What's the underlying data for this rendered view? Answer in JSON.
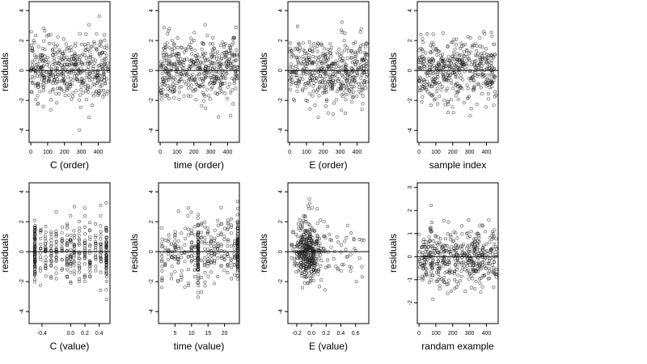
{
  "figure": {
    "background": "#ffffff",
    "point_color": "#222222"
  },
  "chart_data": [
    {
      "type": "scatter",
      "xlabel": "C (order)",
      "ylabel": "residuals",
      "xlim": [
        -10,
        470
      ],
      "ylim": [
        -4.8,
        4.6
      ],
      "xticks": [
        0,
        100,
        200,
        300,
        400
      ],
      "xtick_labels": [
        "0",
        "100",
        "200",
        "300",
        "400"
      ],
      "yticks": [
        -4,
        -2,
        0,
        2,
        4
      ],
      "ytick_labels": [
        "-4",
        "-2",
        "0",
        "2",
        "4"
      ],
      "hline": 0,
      "points": {
        "description": "about 460 residuals, noise centered on 0",
        "x_kind": "index",
        "n": 460,
        "x_range": [
          0,
          460
        ],
        "spread": 1.7,
        "y_clip": [
          -4.4,
          4.3
        ],
        "seed": 11
      }
    },
    {
      "type": "scatter",
      "xlabel": "time (order)",
      "ylabel": "residuals",
      "xlim": [
        -10,
        470
      ],
      "ylim": [
        -4.8,
        4.6
      ],
      "xticks": [
        0,
        100,
        200,
        300,
        400
      ],
      "xtick_labels": [
        "0",
        "100",
        "200",
        "300",
        "400"
      ],
      "yticks": [
        -4,
        -2,
        0,
        2,
        4
      ],
      "ytick_labels": [
        "-4",
        "-2",
        "0",
        "2",
        "4"
      ],
      "hline": 0,
      "points": {
        "description": "about 460 residuals, noise centered on 0",
        "x_kind": "index",
        "n": 460,
        "x_range": [
          0,
          460
        ],
        "spread": 1.7,
        "y_clip": [
          -4.4,
          4.3
        ],
        "seed": 23
      }
    },
    {
      "type": "scatter",
      "xlabel": "E (order)",
      "ylabel": "residuals",
      "xlim": [
        -10,
        470
      ],
      "ylim": [
        -4.8,
        4.6
      ],
      "xticks": [
        0,
        100,
        200,
        300,
        400
      ],
      "xtick_labels": [
        "0",
        "100",
        "200",
        "300",
        "400"
      ],
      "yticks": [
        -4,
        -2,
        0,
        2,
        4
      ],
      "ytick_labels": [
        "-4",
        "-2",
        "0",
        "2",
        "4"
      ],
      "hline": 0,
      "points": {
        "description": "about 460 residuals, noise centered on 0",
        "x_kind": "index",
        "n": 460,
        "x_range": [
          0,
          460
        ],
        "spread": 1.7,
        "y_clip": [
          -4.4,
          4.3
        ],
        "seed": 37
      }
    },
    {
      "type": "scatter",
      "xlabel": "sample index",
      "ylabel": "residuals",
      "xlim": [
        -10,
        470
      ],
      "ylim": [
        -4.8,
        4.6
      ],
      "xticks": [
        0,
        100,
        200,
        300,
        400
      ],
      "xtick_labels": [
        "0",
        "100",
        "200",
        "300",
        "400"
      ],
      "yticks": [
        -4,
        -2,
        0,
        2,
        4
      ],
      "ytick_labels": [
        "-4",
        "-2",
        "0",
        "2",
        "4"
      ],
      "hline": 0,
      "points": {
        "description": "about 460 residuals, noise centered on 0",
        "x_kind": "index",
        "n": 460,
        "x_range": [
          0,
          460
        ],
        "spread": 1.7,
        "y_clip": [
          -4.4,
          4.3
        ],
        "seed": 53
      }
    },
    {
      "type": "scatter",
      "xlabel": "C (value)",
      "ylabel": "residuals",
      "xlim": [
        -0.58,
        0.55
      ],
      "ylim": [
        -4.8,
        4.6
      ],
      "xticks": [
        -0.4,
        0.0,
        0.2,
        0.4
      ],
      "xtick_labels": [
        "-0.4",
        "0.0",
        "0.2",
        "0.4"
      ],
      "yticks": [
        -4,
        -2,
        0,
        2,
        4
      ],
      "ytick_labels": [
        "-4",
        "-2",
        "0",
        "2",
        "4"
      ],
      "hline": 0,
      "points": {
        "description": "about 420 residuals with vertical stripes at discrete C levels",
        "x_kind": "levels",
        "levels": [
          -0.5,
          -0.42,
          -0.35,
          -0.27,
          -0.2,
          -0.12,
          -0.05,
          0.0,
          0.05,
          0.12,
          0.2,
          0.27,
          0.35,
          0.42,
          0.5
        ],
        "heavy_levels": [
          -0.5,
          0.5
        ],
        "n": 420,
        "jitter": 0.004,
        "spread": 1.7,
        "y_clip": [
          -4.4,
          4.3
        ],
        "seed": 71
      }
    },
    {
      "type": "scatter",
      "xlabel": "time (value)",
      "ylabel": "residuals",
      "xlim": [
        0,
        24.5
      ],
      "ylim": [
        -4.8,
        4.6
      ],
      "xticks": [
        5,
        10,
        15,
        20
      ],
      "xtick_labels": [
        "5",
        "10",
        "15",
        "20"
      ],
      "yticks": [
        -4,
        -2,
        0,
        2,
        4
      ],
      "ytick_labels": [
        "-4",
        "-2",
        "0",
        "2",
        "4"
      ],
      "hline": 0,
      "points": {
        "description": "about 420 residuals at integer time values, denser columns at 12 and 24",
        "x_kind": "levels",
        "levels": [
          1,
          2,
          3,
          4,
          5,
          6,
          7,
          8,
          9,
          10,
          11,
          12,
          13,
          14,
          15,
          16,
          17,
          18,
          19,
          20,
          21,
          22,
          23,
          24
        ],
        "heavy_levels": [
          12,
          24
        ],
        "n": 420,
        "jitter": 0.1,
        "spread": 1.7,
        "y_clip": [
          -4.4,
          4.3
        ],
        "seed": 89
      }
    },
    {
      "type": "scatter",
      "xlabel": "E (value)",
      "ylabel": "residuals",
      "xlim": [
        -0.32,
        0.78
      ],
      "ylim": [
        -4.8,
        4.6
      ],
      "xticks": [
        -0.2,
        0.0,
        0.2,
        0.4,
        0.6
      ],
      "xtick_labels": [
        "-0.2",
        "0.0",
        "0.2",
        "0.4",
        "0.6"
      ],
      "yticks": [
        -4,
        -2,
        0,
        2,
        4
      ],
      "ytick_labels": [
        "-4",
        "-2",
        "0",
        "2",
        "4"
      ],
      "hline": 0,
      "points": {
        "description": "about 430 residuals concentrated between E = -0.2 and 0.1, sparse tail to 0.7",
        "x_kind": "skewed",
        "x_center": -0.06,
        "x_scale": 0.09,
        "x_tail_max": 0.72,
        "n": 430,
        "spread": 1.6,
        "y_clip": [
          -4.4,
          4.3
        ],
        "seed": 97
      }
    },
    {
      "type": "scatter",
      "xlabel": "randam example",
      "ylabel": "residuals",
      "xlim": [
        -10,
        470
      ],
      "ylim": [
        -2.9,
        3.2
      ],
      "xticks": [
        0,
        100,
        200,
        300,
        400
      ],
      "xtick_labels": [
        "0",
        "100",
        "200",
        "300",
        "400"
      ],
      "yticks": [
        -2,
        -1,
        0,
        1,
        2,
        3
      ],
      "ytick_labels": [
        "-2",
        "-1",
        "0",
        "1",
        "2",
        "3"
      ],
      "hline": 0,
      "points": {
        "description": "about 460 standard normal residuals",
        "x_kind": "index",
        "n": 460,
        "x_range": [
          0,
          460
        ],
        "spread": 1.0,
        "y_clip": [
          -2.7,
          3.0
        ],
        "seed": 131
      }
    }
  ]
}
